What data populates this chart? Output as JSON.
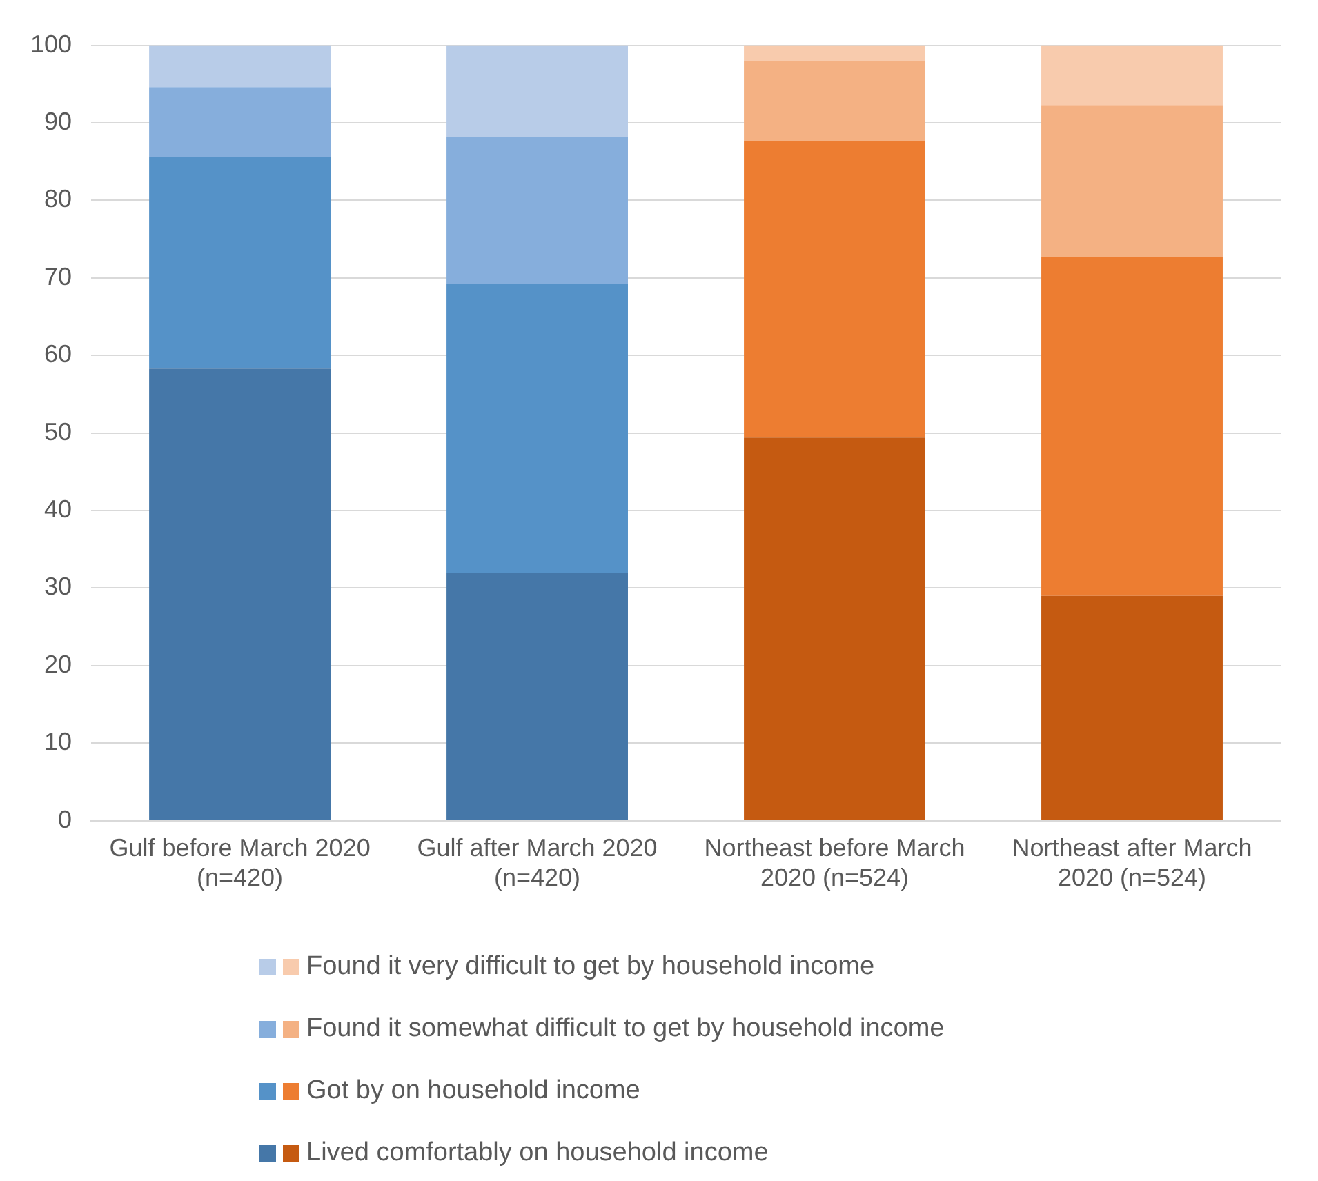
{
  "chart_data": {
    "type": "bar",
    "stacked": true,
    "categories": [
      "Gulf before March 2020 (n=420)",
      "Gulf after March 2020 (n=420)",
      "Northeast before March 2020 (n=524)",
      "Northeast after March 2020 (n=524)"
    ],
    "series": [
      {
        "name": "Lived comfortably on household income",
        "colors": [
          "#4577a8",
          "#4577a8",
          "#c55a11",
          "#c55a11"
        ],
        "values": [
          58.3,
          31.9,
          49.4,
          29.0
        ]
      },
      {
        "name": "Got by on household income",
        "colors": [
          "#5592c8",
          "#5592c8",
          "#ed7d31",
          "#ed7d31"
        ],
        "values": [
          27.3,
          37.3,
          38.2,
          43.7
        ]
      },
      {
        "name": "Found it somewhat difficult to get by household income",
        "colors": [
          "#86aedc",
          "#86aedc",
          "#f4b183",
          "#f4b183"
        ],
        "values": [
          9.0,
          19.0,
          10.4,
          19.6
        ]
      },
      {
        "name": "Found it very difficult to get by household income",
        "colors": [
          "#b8cce8",
          "#b8cce8",
          "#f8cbad",
          "#f8cbad"
        ],
        "values": [
          5.4,
          11.8,
          2.0,
          7.7
        ]
      }
    ],
    "ylim": [
      0,
      100
    ],
    "yticks": [
      0,
      10,
      20,
      30,
      40,
      50,
      60,
      70,
      80,
      90,
      100
    ],
    "grid": "y",
    "legend": "bottom"
  }
}
